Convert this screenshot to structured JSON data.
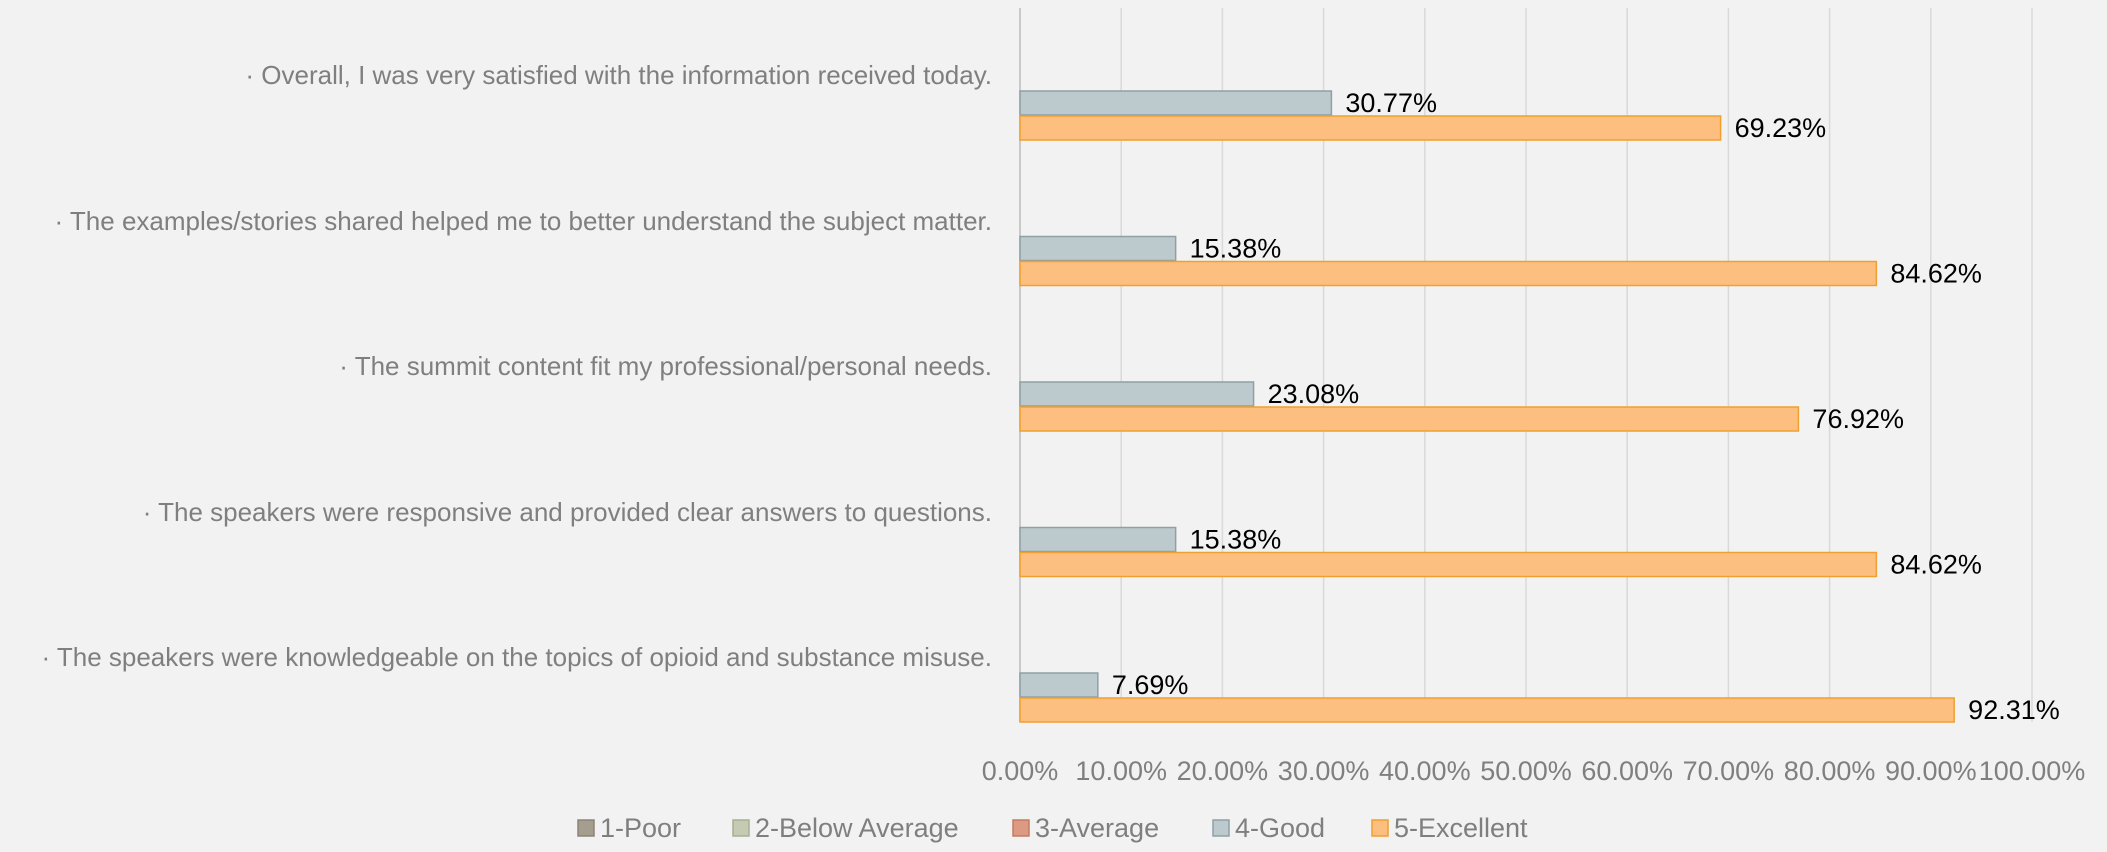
{
  "chart_data": {
    "type": "barh",
    "categories": [
      "· Overall, I was very satisfied with the information received today.",
      "· The examples/stories shared helped me to better understand the subject matter.",
      "· The summit content fit my professional/personal needs.",
      "· The speakers were responsive and provided clear answers to questions.",
      "· The speakers were knowledgeable on the topics of opioid and substance misuse."
    ],
    "series": [
      {
        "name": "1-Poor",
        "color": "#a59d8e",
        "values": [
          0,
          0,
          0,
          0,
          0
        ]
      },
      {
        "name": "2-Below Average",
        "color": "#c5cbb2",
        "values": [
          0,
          0,
          0,
          0,
          0
        ]
      },
      {
        "name": "3-Average",
        "color": "#dc9a82",
        "values": [
          0,
          0,
          0,
          0,
          0
        ]
      },
      {
        "name": "4-Good",
        "color": "#bcc9cd",
        "values": [
          30.77,
          15.38,
          23.08,
          15.38,
          7.69
        ],
        "value_labels": [
          "30.77%",
          "15.38%",
          "23.08%",
          "15.38%",
          "7.69%"
        ]
      },
      {
        "name": "5-Excellent",
        "color": "#fdbf80",
        "values": [
          69.23,
          84.62,
          76.92,
          84.62,
          92.31
        ],
        "value_labels": [
          "69.23%",
          "84.62%",
          "76.92%",
          "84.62%",
          "92.31%"
        ]
      }
    ],
    "xlim": [
      0,
      100
    ],
    "xticks": [
      {
        "value": 0,
        "label": "0.00%"
      },
      {
        "value": 10,
        "label": "10.00%"
      },
      {
        "value": 20,
        "label": "20.00%"
      },
      {
        "value": 30,
        "label": "30.00%"
      },
      {
        "value": 40,
        "label": "40.00%"
      },
      {
        "value": 50,
        "label": "50.00%"
      },
      {
        "value": 60,
        "label": "60.00%"
      },
      {
        "value": 70,
        "label": "70.00%"
      },
      {
        "value": 80,
        "label": "80.00%"
      },
      {
        "value": 90,
        "label": "90.00%"
      },
      {
        "value": 100,
        "label": "100.00%"
      }
    ],
    "grid": true,
    "legend": "bottom"
  }
}
